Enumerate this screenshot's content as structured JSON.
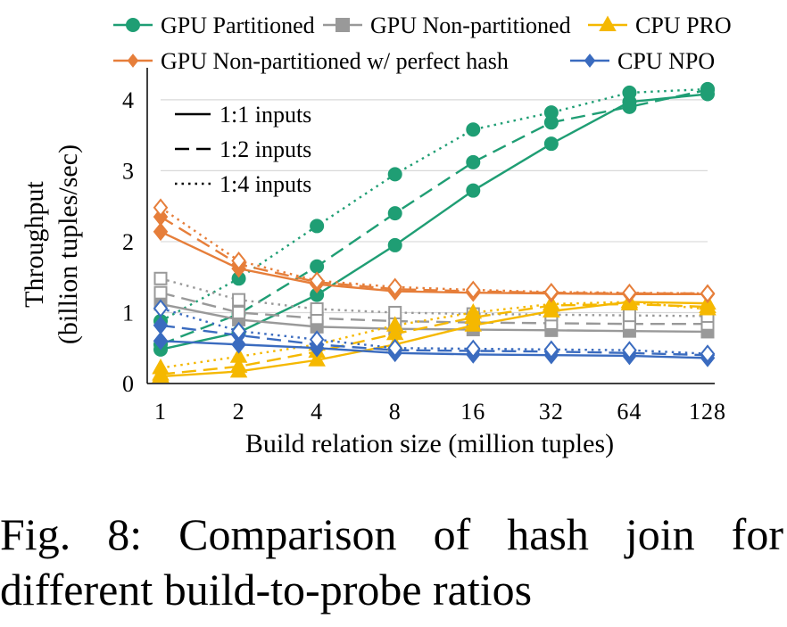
{
  "chart_data": {
    "type": "line",
    "x_scale": "log2",
    "categories": [
      "1",
      "2",
      "4",
      "8",
      "16",
      "32",
      "64",
      "128"
    ],
    "x": [
      1,
      2,
      4,
      8,
      16,
      32,
      64,
      128
    ],
    "xlabel": "Build relation size (million tuples)",
    "ylabel_lines": [
      "Throughput",
      "(billion tuples/sec)"
    ],
    "ylim": [
      0,
      4.3
    ],
    "yticks": [
      0,
      1,
      2,
      3,
      4
    ],
    "grid": "horizontal",
    "legend": {
      "placement": "top",
      "entries": [
        {
          "name": "GPU Partitioned",
          "color": "#1f9e74",
          "marker": "circle"
        },
        {
          "name": "GPU Non-partitioned",
          "color": "#999999",
          "marker": "square"
        },
        {
          "name": "CPU PRO",
          "color": "#f5b800",
          "marker": "triangle"
        },
        {
          "name": "GPU Non-partitioned w/ perfect hash",
          "color": "#e67e3a",
          "marker": "diamond"
        },
        {
          "name": "CPU NPO",
          "color": "#3a6bbf",
          "marker": "diamond"
        }
      ]
    },
    "ratio_legend": [
      {
        "label": "1:1 inputs",
        "dash": "solid"
      },
      {
        "label": "1:2 inputs",
        "dash": "dashed"
      },
      {
        "label": "1:4 inputs",
        "dash": "dotted"
      }
    ],
    "series": [
      {
        "name": "GPU Partitioned",
        "ratio": "1:1",
        "values": [
          0.48,
          0.72,
          1.25,
          1.95,
          2.72,
          3.38,
          3.97,
          4.08
        ]
      },
      {
        "name": "GPU Partitioned",
        "ratio": "1:2",
        "values": [
          0.55,
          0.98,
          1.65,
          2.4,
          3.12,
          3.68,
          3.9,
          4.14
        ]
      },
      {
        "name": "GPU Partitioned",
        "ratio": "1:4",
        "values": [
          0.88,
          1.48,
          2.22,
          2.95,
          3.58,
          3.82,
          4.1,
          4.15
        ]
      },
      {
        "name": "GPU Non-partitioned",
        "ratio": "1:1",
        "values": [
          1.12,
          0.9,
          0.8,
          0.77,
          0.76,
          0.75,
          0.74,
          0.73
        ]
      },
      {
        "name": "GPU Non-partitioned",
        "ratio": "1:2",
        "values": [
          1.28,
          1.0,
          0.92,
          0.88,
          0.86,
          0.85,
          0.84,
          0.84
        ]
      },
      {
        "name": "GPU Non-partitioned",
        "ratio": "1:4",
        "values": [
          1.48,
          1.18,
          1.05,
          1.0,
          0.98,
          0.97,
          0.96,
          0.95
        ]
      },
      {
        "name": "CPU PRO",
        "ratio": "1:1",
        "values": [
          0.1,
          0.17,
          0.33,
          0.55,
          0.82,
          1.02,
          1.15,
          1.13
        ]
      },
      {
        "name": "CPU PRO",
        "ratio": "1:2",
        "values": [
          0.13,
          0.24,
          0.45,
          0.7,
          0.93,
          1.1,
          1.12,
          1.08
        ]
      },
      {
        "name": "CPU PRO",
        "ratio": "1:4",
        "values": [
          0.22,
          0.38,
          0.55,
          0.82,
          1.0,
          1.12,
          1.15,
          1.05
        ]
      },
      {
        "name": "GPU Non-partitioned w/ perfect hash",
        "ratio": "1:1",
        "values": [
          2.14,
          1.62,
          1.4,
          1.3,
          1.28,
          1.27,
          1.26,
          1.26
        ]
      },
      {
        "name": "GPU Non-partitioned w/ perfect hash",
        "ratio": "1:2",
        "values": [
          2.35,
          1.68,
          1.43,
          1.33,
          1.3,
          1.28,
          1.27,
          1.27
        ]
      },
      {
        "name": "GPU Non-partitioned w/ perfect hash",
        "ratio": "1:4",
        "values": [
          2.48,
          1.73,
          1.45,
          1.36,
          1.32,
          1.29,
          1.28,
          1.27
        ]
      },
      {
        "name": "CPU NPO",
        "ratio": "1:1",
        "values": [
          0.6,
          0.55,
          0.5,
          0.43,
          0.41,
          0.4,
          0.39,
          0.36
        ]
      },
      {
        "name": "CPU NPO",
        "ratio": "1:2",
        "values": [
          0.82,
          0.68,
          0.55,
          0.47,
          0.46,
          0.45,
          0.43,
          0.4
        ]
      },
      {
        "name": "CPU NPO",
        "ratio": "1:4",
        "values": [
          1.06,
          0.74,
          0.62,
          0.5,
          0.49,
          0.48,
          0.47,
          0.42
        ]
      }
    ]
  },
  "caption": {
    "line1": "Fig. 8: Comparison of hash join for",
    "line2": "different build-to-probe ratios"
  }
}
